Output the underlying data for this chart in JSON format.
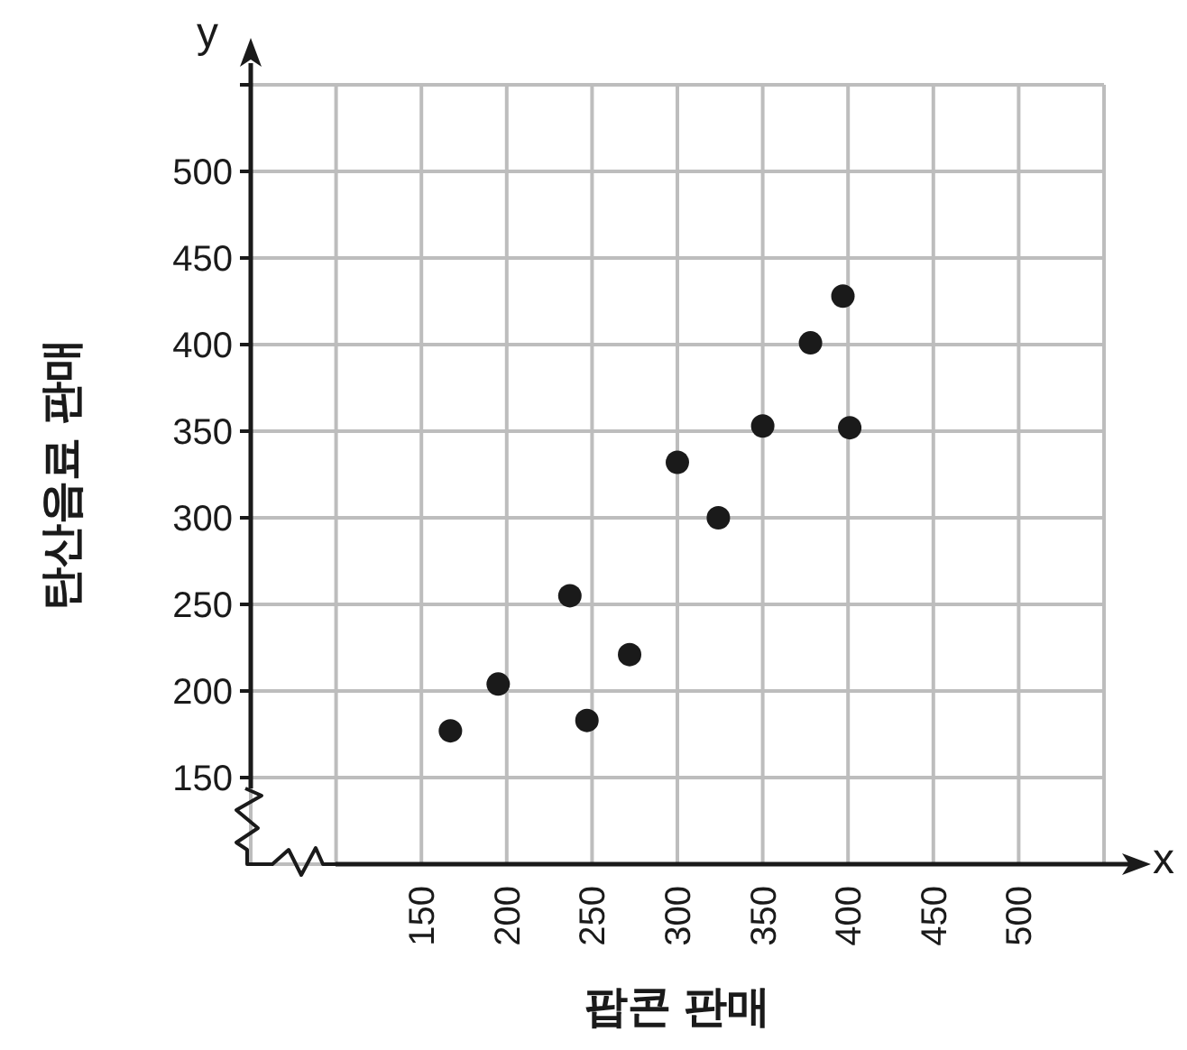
{
  "chart_data": {
    "type": "scatter",
    "xlabel": "팝콘 판매",
    "ylabel": "탄산음료 판매",
    "annotations": [
      "x",
      "y"
    ],
    "x": [
      167,
      195,
      237,
      247,
      272,
      300,
      324,
      350,
      378,
      397,
      401
    ],
    "series": [
      {
        "color": "#1a1a1a",
        "values": [
          177,
          204,
          255,
          183,
          221,
          332,
          300,
          353,
          401,
          428,
          352
        ]
      }
    ],
    "xlim": [
      50,
      550
    ],
    "xticks": [
      {
        "value": 100,
        "label": null
      },
      150,
      200,
      250,
      300,
      350,
      400,
      450,
      500,
      {
        "value": 550,
        "label": null
      }
    ],
    "ylim": [
      100,
      550
    ],
    "yticks": [
      150,
      200,
      250,
      300,
      350,
      400,
      450,
      500,
      {
        "value": 550,
        "label": null
      }
    ],
    "grid": true,
    "marker": "circle"
  }
}
